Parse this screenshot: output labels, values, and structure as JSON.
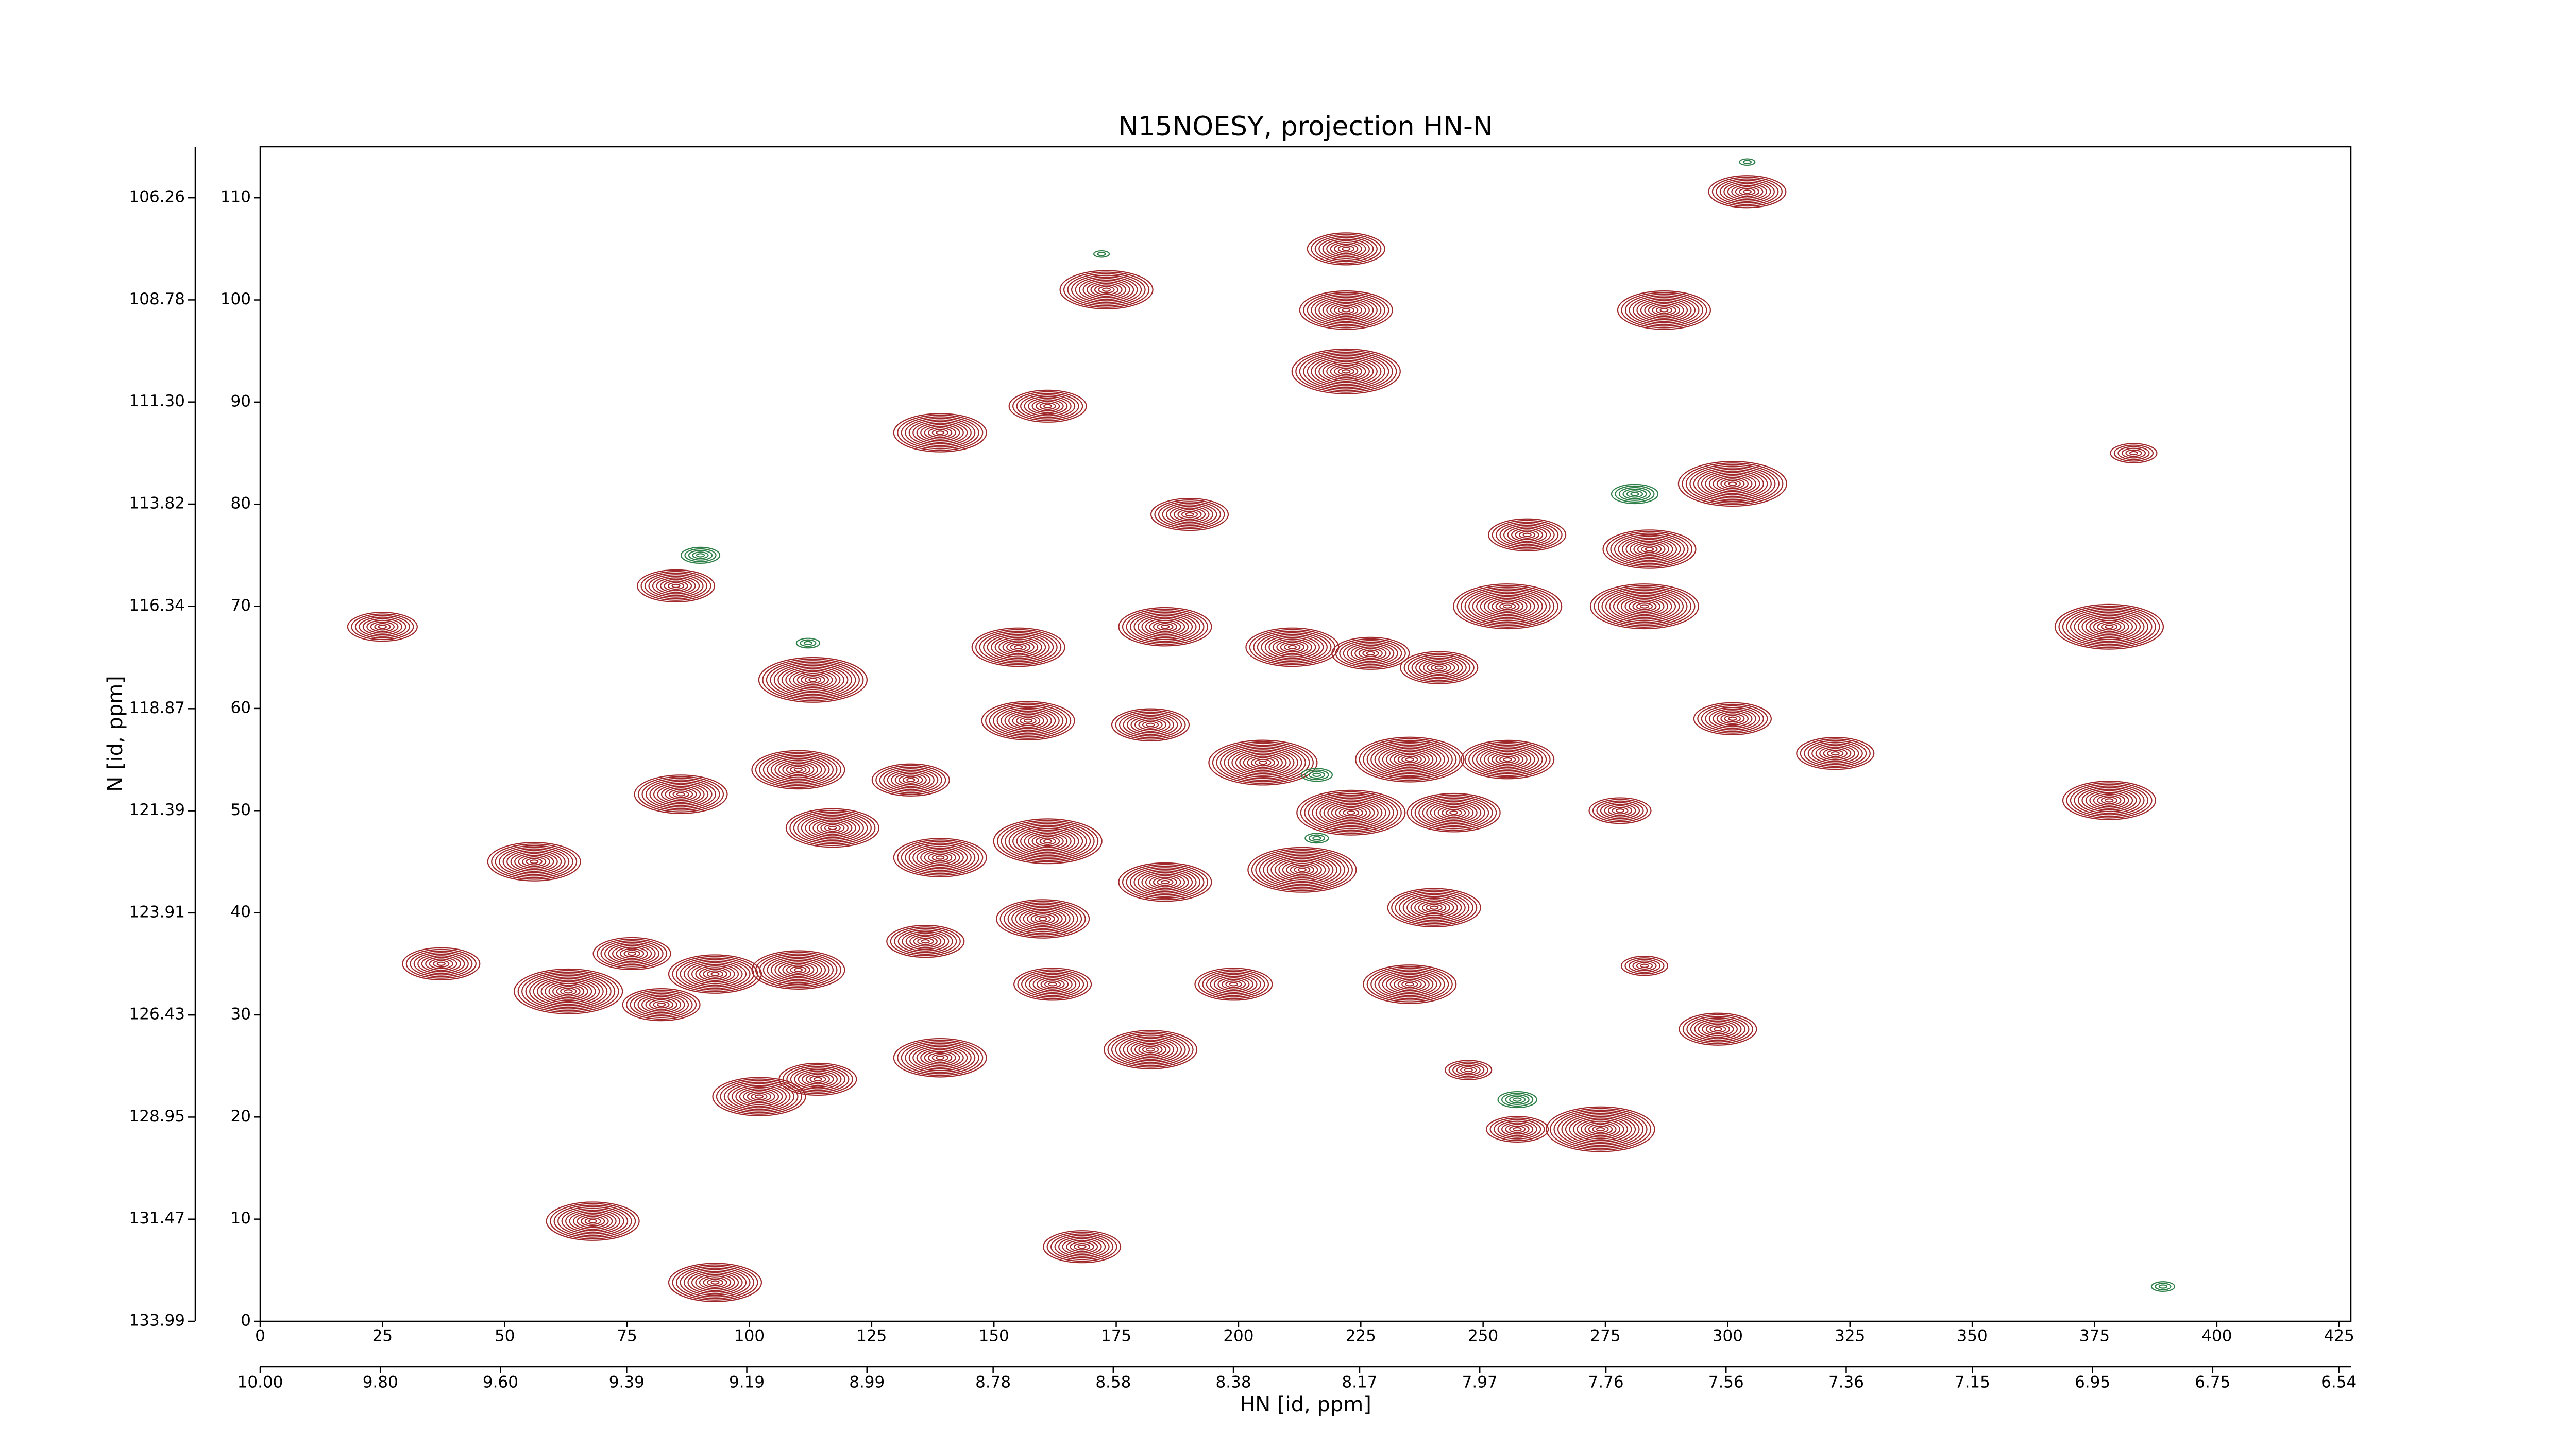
{
  "chart_data": {
    "type": "contour",
    "title": "N15NOESY, projection HN-N",
    "xlabel": "HN [id, ppm]",
    "ylabel": "N [id, ppm]",
    "xlim": [
      0,
      427.4
    ],
    "xticks": [
      0,
      25,
      50,
      75,
      100,
      125,
      150,
      175,
      200,
      225,
      250,
      275,
      300,
      325,
      350,
      375,
      400,
      425
    ],
    "x2lim": [
      10.0,
      6.52
    ],
    "x2ticks": [
      {
        "value": 10.0,
        "label": "10.00"
      },
      {
        "value": 9.8,
        "label": "9.80"
      },
      {
        "value": 9.6,
        "label": "9.60"
      },
      9.39,
      9.19,
      8.99,
      8.78,
      8.58,
      8.38,
      8.17,
      7.97,
      7.76,
      7.56,
      7.36,
      7.15,
      6.95,
      6.75,
      6.54
    ],
    "ylim": [
      0,
      115
    ],
    "yticks": [
      0,
      10,
      20,
      30,
      40,
      50,
      60,
      70,
      80,
      90,
      100,
      110
    ],
    "y2lim": [
      133.99,
      105.0
    ],
    "y2ticks": [
      133.99,
      131.47,
      128.95,
      126.43,
      123.91,
      121.39,
      118.87,
      116.34,
      113.82,
      {
        "value": 111.3,
        "label": "111.30"
      },
      108.78,
      106.26
    ],
    "series": [
      {
        "color": "#a0282a",
        "x": [
          304,
          173,
          222,
          222,
          222,
          287,
          139,
          161,
          301,
          190,
          259,
          284,
          85,
          25,
          255,
          283,
          155,
          185,
          211,
          227,
          241,
          378,
          113,
          157,
          182,
          301,
          322,
          205,
          235,
          255,
          110,
          133,
          86,
          378,
          117,
          223,
          244,
          278,
          161,
          56,
          139,
          213,
          185,
          240,
          160,
          136,
          37,
          76,
          93,
          110,
          63,
          82,
          199,
          235,
          283,
          162,
          298,
          182,
          139,
          247,
          114,
          102,
          274,
          257,
          68,
          93,
          168,
          383
        ],
        "y": [
          110.6,
          101,
          105,
          99,
          93,
          99,
          87,
          89.6,
          82,
          79,
          77,
          75.6,
          72,
          68,
          70,
          70,
          66,
          68,
          66,
          65.4,
          64,
          68,
          62.8,
          58.8,
          58.4,
          59,
          55.6,
          54.7,
          55,
          55,
          54,
          53,
          51.6,
          51,
          48.3,
          49.8,
          49.8,
          50,
          47,
          45,
          45.4,
          44.2,
          43,
          40.5,
          39.4,
          37.2,
          35,
          36,
          34,
          34.4,
          32.3,
          31,
          33,
          33,
          34.8,
          33,
          28.6,
          26.6,
          25.8,
          24.6,
          23.7,
          22,
          18.8,
          18.8,
          9.8,
          3.8,
          7.3,
          85
        ],
        "sizes": [
          10,
          12,
          10,
          12,
          14,
          12,
          12,
          10,
          14,
          10,
          10,
          12,
          10,
          9,
          14,
          14,
          12,
          12,
          12,
          10,
          10,
          14,
          14,
          12,
          10,
          10,
          10,
          14,
          14,
          12,
          12,
          10,
          12,
          12,
          12,
          14,
          12,
          8,
          14,
          12,
          12,
          14,
          12,
          12,
          12,
          10,
          10,
          10,
          12,
          12,
          14,
          10,
          10,
          12,
          6,
          10,
          10,
          12,
          12,
          6,
          10,
          12,
          14,
          8,
          12,
          12,
          10,
          6
        ]
      },
      {
        "color": "#2e8048",
        "x": [
          90,
          281,
          172,
          216,
          216,
          304,
          389,
          112,
          257
        ],
        "y": [
          75,
          81,
          104.5,
          53.5,
          47.3,
          113.5,
          3.4,
          66.4,
          21.7
        ],
        "sizes": [
          5,
          6,
          2,
          4,
          3,
          2,
          3,
          3,
          5
        ]
      }
    ]
  }
}
